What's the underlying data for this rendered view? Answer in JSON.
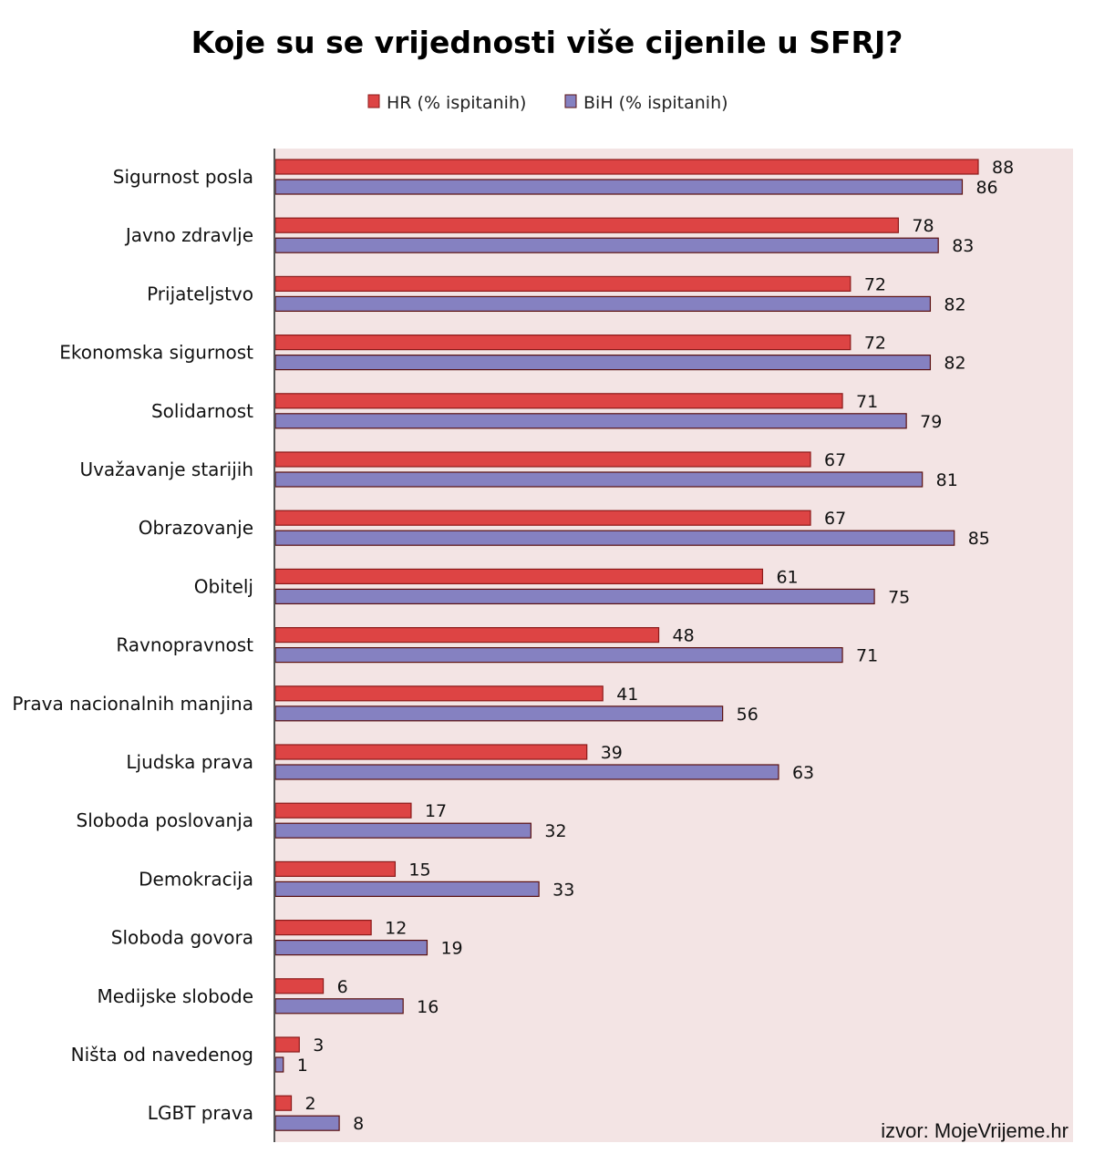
{
  "chart_data": {
    "type": "bar",
    "orientation": "horizontal",
    "title": "Koje su se vrijednosti više cijenile u SFRJ?",
    "source": "izvor: MojeVrijeme.hr",
    "legend_position": "top",
    "grid": false,
    "xlim": [
      0,
      100
    ],
    "categories": [
      "Sigurnost posla",
      "Javno zdravlje",
      "Prijateljstvo",
      "Ekonomska sigurnost",
      "Solidarnost",
      "Uvažavanje starijih",
      "Obrazovanje",
      "Obitelj",
      "Ravnopravnost",
      "Prava nacionalnih manjina",
      "Ljudska prava",
      "Sloboda poslovanja",
      "Demokracija",
      "Sloboda govora",
      "Medijske slobode",
      "Ništa od navedenog",
      "LGBT prava"
    ],
    "series": [
      {
        "name": "HR (% ispitanih)",
        "color": "#dd4444",
        "values": [
          88,
          78,
          72,
          72,
          71,
          67,
          67,
          61,
          48,
          41,
          39,
          17,
          15,
          12,
          6,
          3,
          2
        ]
      },
      {
        "name": "BiH (% ispitanih)",
        "color": "#8581c1",
        "values": [
          86,
          83,
          82,
          82,
          79,
          81,
          85,
          75,
          71,
          56,
          63,
          32,
          33,
          19,
          16,
          1,
          8
        ]
      }
    ]
  },
  "colors": {
    "plot_background": "#f3e4e4",
    "axis": "#555555",
    "hr_border": "#8b1a1a",
    "bih_border": "#5a1010"
  }
}
